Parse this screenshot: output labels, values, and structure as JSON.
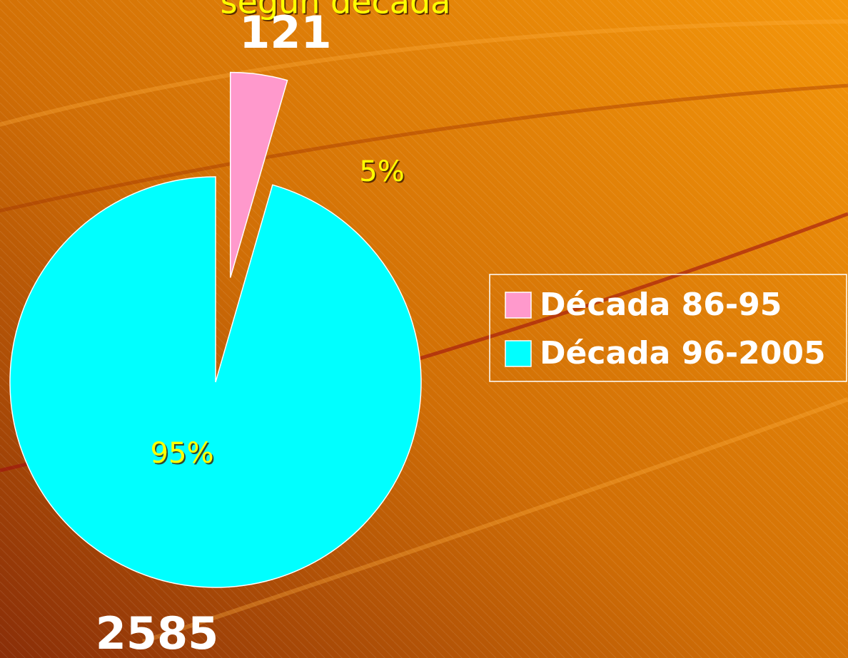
{
  "chart_data": {
    "type": "pie",
    "title": "según década",
    "categories": [
      "Década 86-95",
      "Década 96-2005"
    ],
    "values": [
      121,
      2585
    ],
    "percent_labels": [
      "5%",
      "95%"
    ],
    "colors": [
      "#ff99cc",
      "#00ffff"
    ],
    "legend": "right"
  }
}
